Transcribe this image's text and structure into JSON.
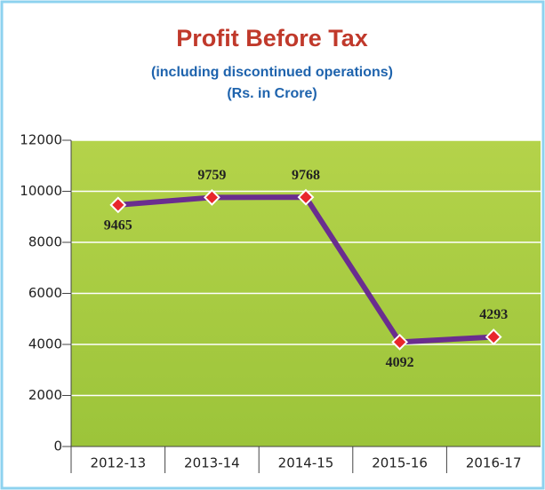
{
  "chart_data": {
    "type": "line",
    "title": "Profit Before Tax",
    "subtitle": [
      "(including discontinued operations)",
      "(Rs. in Crore)"
    ],
    "categories": [
      "2012-13",
      "2013-14",
      "2014-15",
      "2015-16",
      "2016-17"
    ],
    "values": [
      9465,
      9759,
      9768,
      4092,
      4293
    ],
    "color": "#6a2d8f",
    "ylim": [
      0,
      12000
    ],
    "yticks": [
      0,
      2000,
      4000,
      6000,
      8000,
      10000,
      12000
    ],
    "grid": true
  }
}
